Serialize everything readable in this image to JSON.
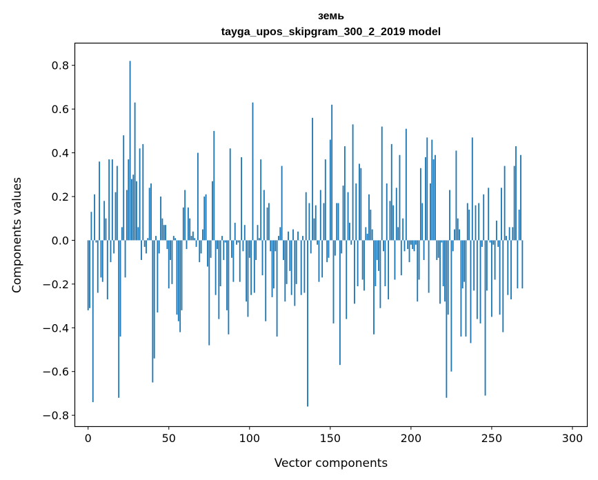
{
  "chart_data": {
    "type": "bar",
    "title": "земь",
    "subtitle": "tayga_upos_skipgram_300_2_2019 model",
    "xlabel": "Vector components",
    "ylabel": "Components values",
    "xlim": [
      -8,
      309
    ],
    "ylim": [
      -0.85,
      0.9
    ],
    "xticks": [
      0,
      50,
      100,
      150,
      200,
      250,
      300
    ],
    "xtick_labels": [
      "0",
      "50",
      "100",
      "150",
      "200",
      "250",
      "300"
    ],
    "yticks": [
      0.8,
      0.6,
      0.4,
      0.2,
      0.0,
      -0.2,
      -0.4,
      -0.6,
      -0.8
    ],
    "ytick_labels": [
      "0.8",
      "0.6",
      "0.4",
      "0.2",
      "0.0",
      "−0.2",
      "−0.4",
      "−0.6",
      "−0.8"
    ],
    "bar_color": "#1f77b4",
    "grid": false,
    "values": [
      -0.32,
      -0.31,
      0.13,
      -0.74,
      0.21,
      -0.01,
      -0.24,
      0.36,
      -0.17,
      -0.19,
      0.18,
      0.1,
      -0.27,
      0.37,
      -0.1,
      0.37,
      -0.06,
      0.22,
      0.34,
      -0.72,
      -0.44,
      0.06,
      0.48,
      -0.17,
      0.23,
      0.37,
      0.82,
      0.28,
      0.3,
      0.63,
      0.27,
      0.06,
      0.42,
      -0.09,
      0.44,
      -0.03,
      -0.06,
      0.01,
      0.24,
      0.26,
      -0.65,
      -0.54,
      0.02,
      -0.33,
      -0.06,
      0.2,
      0.1,
      0.07,
      0.07,
      -0.04,
      -0.22,
      -0.09,
      -0.2,
      0.02,
      0.01,
      -0.34,
      -0.37,
      -0.42,
      -0.32,
      0.15,
      0.23,
      -0.04,
      0.15,
      0.1,
      0.02,
      0.04,
      0.01,
      -0.03,
      0.4,
      -0.1,
      -0.06,
      0.05,
      0.2,
      0.21,
      -0.12,
      -0.48,
      -0.08,
      0.27,
      0.5,
      -0.25,
      -0.04,
      -0.36,
      -0.21,
      0.02,
      -0.09,
      -0.01,
      -0.32,
      -0.43,
      0.42,
      -0.08,
      -0.19,
      0.08,
      -0.02,
      -0.01,
      -0.19,
      0.38,
      -0.05,
      0.07,
      -0.28,
      -0.35,
      -0.08,
      -0.25,
      0.63,
      -0.24,
      -0.09,
      0.07,
      0.01,
      0.37,
      -0.16,
      0.23,
      -0.37,
      0.15,
      0.17,
      -0.05,
      -0.26,
      -0.22,
      -0.05,
      -0.44,
      0.02,
      0.06,
      0.34,
      -0.09,
      -0.28,
      -0.2,
      0.04,
      -0.14,
      -0.25,
      0.05,
      -0.3,
      -0.2,
      0.04,
      0.0,
      -0.25,
      0.02,
      -0.24,
      0.22,
      -0.76,
      0.17,
      -0.06,
      0.56,
      0.1,
      0.16,
      -0.02,
      -0.19,
      0.23,
      -0.17,
      0.17,
      0.37,
      -0.1,
      -0.08,
      0.46,
      0.62,
      -0.38,
      -0.07,
      0.17,
      0.17,
      -0.57,
      -0.06,
      0.25,
      0.43,
      -0.36,
      0.22,
      0.08,
      -0.02,
      0.53,
      -0.29,
      0.26,
      -0.21,
      0.35,
      0.33,
      -0.18,
      -0.23,
      0.06,
      0.03,
      0.21,
      0.14,
      0.05,
      -0.43,
      -0.21,
      -0.09,
      -0.14,
      -0.31,
      0.52,
      -0.05,
      -0.21,
      0.26,
      -0.27,
      0.18,
      0.44,
      0.16,
      -0.18,
      0.24,
      0.06,
      0.39,
      -0.16,
      0.1,
      -0.05,
      0.51,
      -0.04,
      -0.1,
      -0.02,
      -0.04,
      -0.05,
      -0.02,
      -0.28,
      -0.18,
      0.33,
      0.17,
      -0.09,
      0.38,
      0.47,
      -0.24,
      0.26,
      0.46,
      0.37,
      0.39,
      -0.09,
      -0.08,
      -0.29,
      -0.01,
      -0.21,
      -0.28,
      -0.72,
      -0.34,
      0.23,
      -0.6,
      -0.05,
      0.05,
      0.41,
      0.1,
      0.05,
      -0.44,
      -0.22,
      -0.19,
      -0.44,
      0.17,
      0.14,
      -0.47,
      0.47,
      -0.23,
      0.16,
      -0.36,
      0.17,
      -0.38,
      -0.03,
      0.21,
      -0.71,
      -0.23,
      0.24,
      -0.01,
      -0.35,
      -0.02,
      -0.18,
      0.09,
      -0.03,
      -0.34,
      0.24,
      -0.42,
      0.34,
      0.02,
      -0.25,
      0.06,
      -0.27,
      0.06,
      0.34,
      0.43,
      -0.22,
      0.14,
      0.39,
      -0.22
    ]
  }
}
